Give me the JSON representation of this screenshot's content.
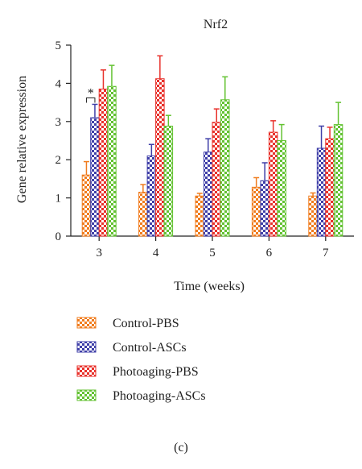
{
  "chart_data": {
    "type": "bar",
    "title": "Nrf2",
    "xlabel": "Time (weeks)",
    "ylabel": "Gene relative expression",
    "categories": [
      "3",
      "4",
      "5",
      "6",
      "7"
    ],
    "ylim": [
      0,
      5
    ],
    "yticks": [
      "0",
      "1",
      "2",
      "3",
      "4",
      "5"
    ],
    "error_bars": true,
    "grid": false,
    "legend_position": "bottom",
    "series": [
      {
        "name": "Control-PBS",
        "color": "#f07c1e",
        "values": [
          1.6,
          1.15,
          1.05,
          1.28,
          1.05
        ],
        "errors": [
          0.35,
          0.2,
          0.07,
          0.25,
          0.08
        ]
      },
      {
        "name": "Control-ASCs",
        "color": "#3f3fa8",
        "values": [
          3.1,
          2.1,
          2.2,
          1.45,
          2.3
        ],
        "errors": [
          0.35,
          0.3,
          0.35,
          0.47,
          0.58
        ]
      },
      {
        "name": "Photoaging-PBS",
        "color": "#e8312b",
        "values": [
          3.85,
          4.12,
          2.98,
          2.72,
          2.55
        ],
        "errors": [
          0.5,
          0.6,
          0.35,
          0.3,
          0.3
        ]
      },
      {
        "name": "Photoaging-ASCs",
        "color": "#63c232",
        "values": [
          3.92,
          2.88,
          3.57,
          2.5,
          2.92
        ],
        "errors": [
          0.55,
          0.28,
          0.6,
          0.42,
          0.58
        ]
      }
    ],
    "annotations": [
      {
        "text": "*",
        "category": "3",
        "between": [
          "Control-PBS",
          "Control-ASCs"
        ]
      }
    ]
  },
  "caption": "(c)"
}
